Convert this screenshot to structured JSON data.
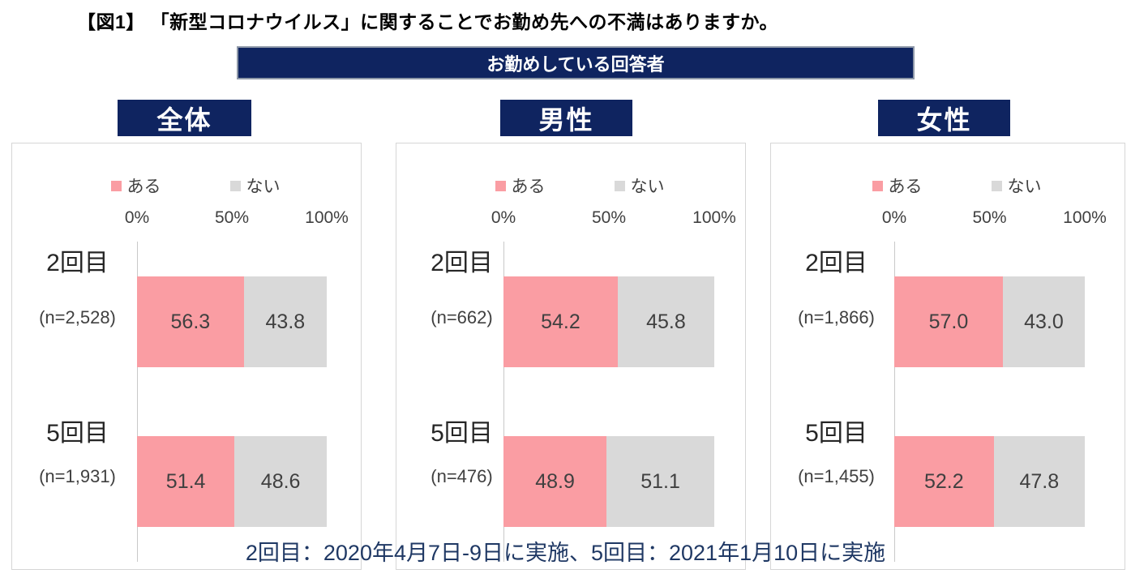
{
  "title": "【図1】 「新型コロナウイルス」に関することでお勤め先への不満はありますか。",
  "banner": "お勤めしている回答者",
  "footer": "2回目：2020年4月7日-9日に実施、5回目：2021年1月10日に実施",
  "colors": {
    "bar_aru_pink": "#FA9DA3",
    "bar_nai_gray": "#D9D9D9",
    "header_navy": "#0F2460",
    "footer_text_navy": "#1F3864",
    "label_gray": "#404040"
  },
  "chart_data": [
    {
      "type": "bar",
      "orientation": "horizontal",
      "stacked": true,
      "title": "全体",
      "legend": [
        "ある",
        "ない"
      ],
      "legend_position": "top",
      "x_ticks": [
        "0%",
        "50%",
        "100%"
      ],
      "xlim": [
        0,
        100
      ],
      "grid": false,
      "categories": [
        "2回目",
        "5回目"
      ],
      "sample_labels": [
        "(n=2,528)",
        "(n=1,931)"
      ],
      "series": [
        {
          "name": "ある",
          "values": [
            56.3,
            51.4
          ],
          "labels": [
            "56.3",
            "51.4"
          ]
        },
        {
          "name": "ない",
          "values": [
            43.8,
            48.6
          ],
          "labels": [
            "43.8",
            "48.6"
          ]
        }
      ]
    },
    {
      "type": "bar",
      "orientation": "horizontal",
      "stacked": true,
      "title": "男性",
      "legend": [
        "ある",
        "ない"
      ],
      "legend_position": "top",
      "x_ticks": [
        "0%",
        "50%",
        "100%"
      ],
      "xlim": [
        0,
        100
      ],
      "grid": false,
      "categories": [
        "2回目",
        "5回目"
      ],
      "sample_labels": [
        "(n=662)",
        "(n=476)"
      ],
      "series": [
        {
          "name": "ある",
          "values": [
            54.2,
            48.9
          ],
          "labels": [
            "54.2",
            "48.9"
          ]
        },
        {
          "name": "ない",
          "values": [
            45.8,
            51.1
          ],
          "labels": [
            "45.8",
            "51.1"
          ]
        }
      ]
    },
    {
      "type": "bar",
      "orientation": "horizontal",
      "stacked": true,
      "title": "女性",
      "legend": [
        "ある",
        "ない"
      ],
      "legend_position": "top",
      "x_ticks": [
        "0%",
        "50%",
        "100%"
      ],
      "xlim": [
        0,
        100
      ],
      "grid": false,
      "categories": [
        "2回目",
        "5回目"
      ],
      "sample_labels": [
        "(n=1,866)",
        "(n=1,455)"
      ],
      "series": [
        {
          "name": "ある",
          "values": [
            57.0,
            52.2
          ],
          "labels": [
            "57.0",
            "52.2"
          ]
        },
        {
          "name": "ない",
          "values": [
            43.0,
            47.8
          ],
          "labels": [
            "43.0",
            "47.8"
          ]
        }
      ]
    }
  ]
}
